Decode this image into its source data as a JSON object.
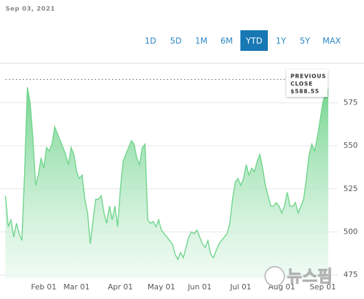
{
  "date": "Sep 03, 2021",
  "range_selector": {
    "options": [
      "1D",
      "5D",
      "1M",
      "6M",
      "YTD",
      "1Y",
      "5Y",
      "MAX"
    ],
    "active": "YTD"
  },
  "watermark": "뉴스핌",
  "chart_data": {
    "type": "area",
    "categories": [
      null,
      null,
      null,
      null,
      null,
      null,
      null,
      null,
      null,
      null,
      null,
      null,
      null,
      null,
      "Feb 01",
      null,
      null,
      null,
      null,
      null,
      null,
      null,
      null,
      null,
      null,
      null,
      "Mar 01",
      null,
      null,
      null,
      null,
      null,
      null,
      null,
      null,
      null,
      null,
      null,
      null,
      null,
      null,
      null,
      "Apr 01",
      null,
      null,
      null,
      null,
      null,
      null,
      null,
      null,
      null,
      null,
      null,
      null,
      null,
      null,
      "May 01",
      null,
      null,
      null,
      null,
      null,
      null,
      null,
      null,
      null,
      null,
      null,
      null,
      null,
      "Jun 01",
      null,
      null,
      null,
      null,
      null,
      null,
      null,
      null,
      null,
      null,
      null,
      null,
      null,
      null,
      "Jul 01",
      null,
      null,
      null,
      null,
      null,
      null,
      null,
      null,
      null,
      null,
      null,
      null,
      null,
      null,
      "Aug 01",
      null,
      null,
      null,
      null,
      null,
      null,
      null,
      null,
      null,
      null,
      null,
      null,
      null,
      null,
      "Sep 01",
      null,
      null
    ],
    "values": [
      521,
      503,
      507,
      497,
      505,
      499,
      495,
      535,
      584,
      575,
      555,
      527,
      533,
      543,
      537,
      549,
      547,
      551,
      561,
      557,
      553,
      549,
      545,
      539,
      549,
      545,
      535,
      531,
      533,
      519,
      511,
      493,
      507,
      519,
      519,
      521,
      511,
      505,
      515,
      507,
      515,
      503,
      525,
      541,
      545,
      549,
      553,
      551,
      543,
      539,
      549,
      551,
      507,
      505,
      506,
      503,
      507,
      501,
      499,
      497,
      495,
      493,
      487,
      484,
      488,
      485,
      491,
      497,
      500,
      499,
      501,
      497,
      493,
      491,
      495,
      487,
      485,
      489,
      493,
      495,
      497,
      499,
      505,
      519,
      529,
      531,
      527,
      531,
      539,
      533,
      537,
      535,
      541,
      545,
      537,
      527,
      521,
      515,
      515,
      517,
      515,
      511,
      515,
      523,
      515,
      515,
      517,
      511,
      515,
      519,
      531,
      545,
      551,
      547,
      555,
      565,
      575,
      581,
      583
    ],
    "color": "#72d68f",
    "ylim": [
      473,
      598
    ],
    "yticks": [
      475,
      500,
      525,
      550,
      575
    ],
    "grid": true,
    "previous_close": {
      "value": 588.55,
      "label": "$588.55"
    },
    "previous_close_title": [
      "PREVIOUS",
      "CLOSE"
    ]
  }
}
